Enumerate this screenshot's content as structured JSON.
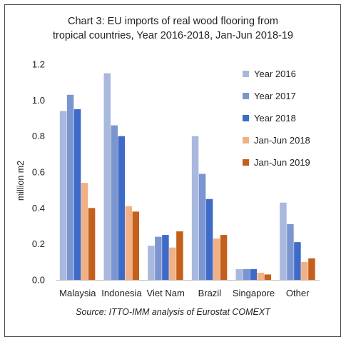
{
  "chart_data": {
    "type": "bar",
    "title_line1": "Chart 3: EU imports of real wood flooring from",
    "title_line2": "tropical countries, Year 2016-2018, Jan-Jun 2018-19",
    "ylabel": "million m2",
    "xlabel": "",
    "ylim": [
      0,
      1.2
    ],
    "yticks": [
      "0.0",
      "0.2",
      "0.4",
      "0.6",
      "0.8",
      "1.0",
      "1.2"
    ],
    "grid": false,
    "legend_position": "right",
    "categories": [
      "Malaysia",
      "Indonesia",
      "Viet Nam",
      "Brazil",
      "Singapore",
      "Other"
    ],
    "series": [
      {
        "name": "Year 2016",
        "color": "#a9b8dd",
        "values": [
          0.94,
          1.15,
          0.19,
          0.8,
          0.06,
          0.43
        ]
      },
      {
        "name": "Year 2017",
        "color": "#7b95d1",
        "values": [
          1.03,
          0.86,
          0.24,
          0.59,
          0.06,
          0.31
        ]
      },
      {
        "name": "Year 2018",
        "color": "#3e6ac8",
        "values": [
          0.95,
          0.8,
          0.25,
          0.45,
          0.06,
          0.21
        ]
      },
      {
        "name": "Jan-Jun 2018",
        "color": "#f2b085",
        "values": [
          0.54,
          0.41,
          0.18,
          0.23,
          0.04,
          0.1
        ]
      },
      {
        "name": "Jan-Jun 2019",
        "color": "#c4601b",
        "values": [
          0.4,
          0.38,
          0.27,
          0.25,
          0.03,
          0.12
        ]
      }
    ],
    "source": "Source: ITTO-IMM analysis of Eurostat COMEXT"
  }
}
